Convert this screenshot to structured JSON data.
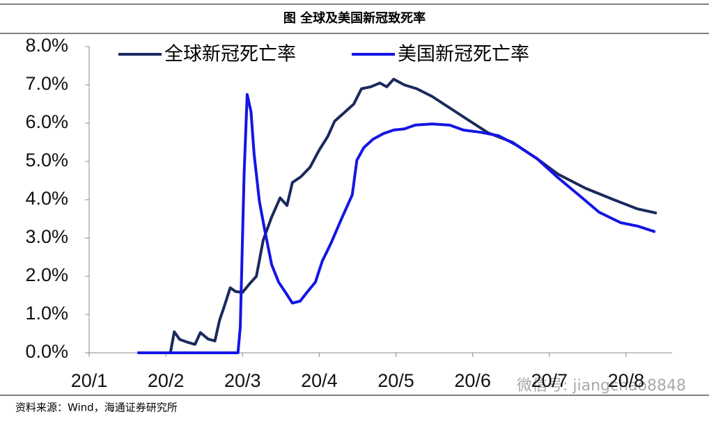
{
  "chart_data": {
    "type": "line",
    "title": "图 全球及美国新冠致死率",
    "source": "资料来源：Wind，海通证券研究所",
    "watermark": "微信号: jiangchao8848",
    "xlim": [
      1,
      8.6
    ],
    "xticks": [
      {
        "value": 1,
        "label": "20/1"
      },
      {
        "value": 2,
        "label": "20/2"
      },
      {
        "value": 3,
        "label": "20/3"
      },
      {
        "value": 4,
        "label": "20/4"
      },
      {
        "value": 5,
        "label": "20/5"
      },
      {
        "value": 6,
        "label": "20/6"
      },
      {
        "value": 7,
        "label": "20/7"
      },
      {
        "value": 8,
        "label": "20/8"
      }
    ],
    "ylim": [
      0,
      8
    ],
    "yticks": [
      {
        "value": 0,
        "label": "0.0%"
      },
      {
        "value": 1,
        "label": "1.0%"
      },
      {
        "value": 2,
        "label": "2.0%"
      },
      {
        "value": 3,
        "label": "3.0%"
      },
      {
        "value": 4,
        "label": "4.0%"
      },
      {
        "value": 5,
        "label": "5.0%"
      },
      {
        "value": 6,
        "label": "6.0%"
      },
      {
        "value": 7,
        "label": "7.0%"
      },
      {
        "value": 8,
        "label": "8.0%"
      }
    ],
    "legend": "top-left",
    "series": [
      {
        "name": "全球新冠死亡率",
        "color": "#1b2a5c",
        "x": [
          1.63,
          2.06,
          2.11,
          2.18,
          2.29,
          2.38,
          2.45,
          2.55,
          2.64,
          2.7,
          2.76,
          2.84,
          2.91,
          3.0,
          3.09,
          3.18,
          3.27,
          3.38,
          3.49,
          3.58,
          3.65,
          3.76,
          3.88,
          4.0,
          4.11,
          4.2,
          4.34,
          4.45,
          4.55,
          4.67,
          4.79,
          4.88,
          4.97,
          5.11,
          5.27,
          5.47,
          5.7,
          5.93,
          6.2,
          6.52,
          6.84,
          7.11,
          7.47,
          7.84,
          8.15,
          8.4
        ],
        "values": [
          0,
          0,
          0.55,
          0.35,
          0.27,
          0.22,
          0.53,
          0.36,
          0.31,
          0.85,
          1.2,
          1.7,
          1.6,
          1.58,
          1.8,
          2.0,
          2.95,
          3.55,
          4.05,
          3.85,
          4.45,
          4.6,
          4.85,
          5.3,
          5.65,
          6.05,
          6.3,
          6.5,
          6.9,
          6.95,
          7.05,
          6.95,
          7.15,
          7.0,
          6.9,
          6.7,
          6.4,
          6.1,
          5.75,
          5.5,
          5.07,
          4.67,
          4.3,
          4.0,
          3.76,
          3.65
        ]
      },
      {
        "name": "美国新冠死亡率",
        "color": "#1414e6",
        "x": [
          1.63,
          2.94,
          2.97,
          3.02,
          3.06,
          3.11,
          3.15,
          3.22,
          3.29,
          3.38,
          3.47,
          3.56,
          3.65,
          3.75,
          3.84,
          3.95,
          4.04,
          4.15,
          4.29,
          4.43,
          4.49,
          4.58,
          4.7,
          4.84,
          4.97,
          5.11,
          5.25,
          5.47,
          5.7,
          5.88,
          6.11,
          6.34,
          6.56,
          6.84,
          7.11,
          7.38,
          7.65,
          7.93,
          8.15,
          8.38
        ],
        "values": [
          0,
          0,
          0.67,
          4.67,
          6.75,
          6.3,
          5.2,
          3.95,
          3.2,
          2.3,
          1.85,
          1.58,
          1.3,
          1.35,
          1.58,
          1.85,
          2.4,
          2.85,
          3.5,
          4.13,
          5.03,
          5.36,
          5.58,
          5.73,
          5.82,
          5.85,
          5.95,
          5.98,
          5.95,
          5.82,
          5.76,
          5.67,
          5.44,
          5.07,
          4.58,
          4.13,
          3.67,
          3.4,
          3.31,
          3.16
        ]
      }
    ]
  }
}
